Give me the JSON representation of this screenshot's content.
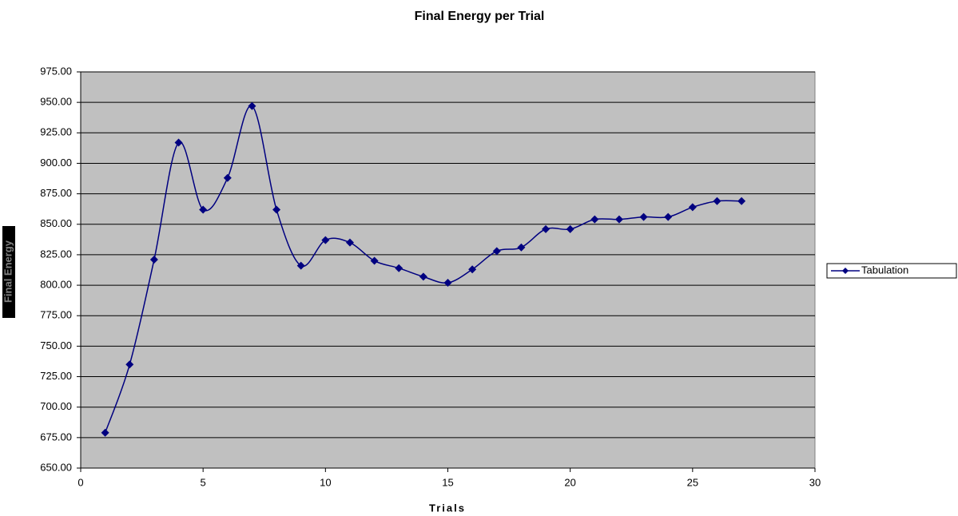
{
  "chart_data": {
    "type": "line",
    "title": "Final Energy per Trial",
    "xlabel": "Trials",
    "ylabel": "Final Energy",
    "x": [
      1,
      2,
      3,
      4,
      5,
      6,
      7,
      8,
      9,
      10,
      11,
      12,
      13,
      14,
      15,
      16,
      17,
      18,
      19,
      20,
      21,
      22,
      23,
      24,
      25,
      26,
      27
    ],
    "series": [
      {
        "name": "Tabulation",
        "color": "#000080",
        "values": [
          679,
          735,
          821,
          917,
          862,
          888,
          947,
          862,
          816,
          837,
          835,
          820,
          814,
          807,
          802,
          813,
          828,
          831,
          846,
          846,
          854,
          854,
          856,
          856,
          864,
          869,
          869
        ]
      }
    ],
    "xlim": [
      0,
      30
    ],
    "xticks": [
      0,
      5,
      10,
      15,
      20,
      25,
      30
    ],
    "ylim": [
      650,
      975
    ],
    "yticks": [
      {
        "value": 650,
        "label": "650.00"
      },
      {
        "value": 675,
        "label": "675.00"
      },
      {
        "value": 700,
        "label": "700.00"
      },
      {
        "value": 725,
        "label": "725.00"
      },
      {
        "value": 750,
        "label": "750.00"
      },
      {
        "value": 775,
        "label": "775.00"
      },
      {
        "value": 800,
        "label": "800.00"
      },
      {
        "value": 825,
        "label": "825.00"
      },
      {
        "value": 850,
        "label": "850.00"
      },
      {
        "value": 875,
        "label": "875.00"
      },
      {
        "value": 900,
        "label": "900.00"
      },
      {
        "value": 925,
        "label": "925.00"
      },
      {
        "value": 950,
        "label": "950.00"
      },
      {
        "value": 975,
        "label": "975.00"
      }
    ],
    "grid": true,
    "legend": "right",
    "smooth": true
  }
}
